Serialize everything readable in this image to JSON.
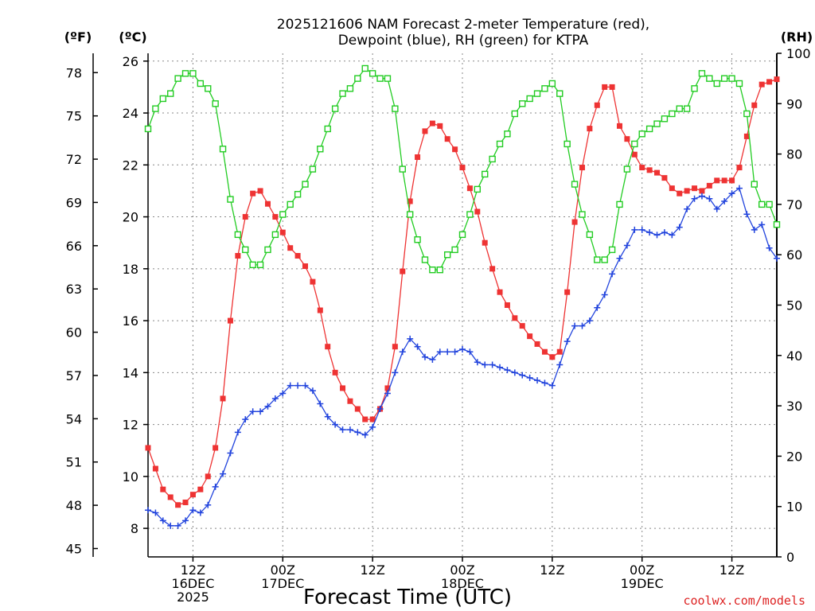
{
  "colors": {
    "temperature": "#ee3333",
    "dewpoint": "#2244dd",
    "rh": "#22cc22",
    "grid": "#888888",
    "axis": "#000000",
    "credit": "#dd2222"
  },
  "chart_data": {
    "type": "line",
    "title_lines": [
      "2025121606 NAM Forecast 2-meter Temperature (red),",
      "Dewpoint (blue), RH (green) for KTPA"
    ],
    "xlabel": "Forecast Time (UTC)",
    "credit": "coolwx.com/models",
    "units": {
      "fahrenheit": "(ºF)",
      "celsius": "(ºC)",
      "rh": "(RH)"
    },
    "x_unit": "forecast hour from 2025-12-16 06Z",
    "xlim": [
      0,
      84
    ],
    "x_ticks": [
      {
        "x": 6,
        "lines": [
          "12Z",
          "16DEC",
          "2025"
        ]
      },
      {
        "x": 18,
        "lines": [
          "00Z",
          "17DEC"
        ]
      },
      {
        "x": 30,
        "lines": [
          "12Z"
        ]
      },
      {
        "x": 42,
        "lines": [
          "00Z",
          "18DEC"
        ]
      },
      {
        "x": 54,
        "lines": [
          "12Z"
        ]
      },
      {
        "x": 66,
        "lines": [
          "00Z",
          "19DEC"
        ]
      },
      {
        "x": 78,
        "lines": [
          "12Z"
        ]
      }
    ],
    "celsius_axis": {
      "ylim": [
        6.9,
        26.3
      ],
      "ticks": [
        8,
        10,
        12,
        14,
        16,
        18,
        20,
        22,
        24,
        26
      ]
    },
    "fahrenheit_axis": {
      "ticks": [
        45,
        48,
        51,
        54,
        57,
        60,
        63,
        66,
        69,
        72,
        75,
        78
      ]
    },
    "rh_axis": {
      "ylim": [
        0,
        100
      ],
      "ticks": [
        0,
        10,
        20,
        30,
        40,
        50,
        60,
        70,
        80,
        90,
        100
      ]
    },
    "series": [
      {
        "name": "Temperature",
        "axis": "celsius",
        "marker": "filled-square",
        "color": "#ee3333",
        "x": [
          0,
          1,
          2,
          3,
          4,
          5,
          6,
          7,
          8,
          9,
          10,
          11,
          12,
          13,
          14,
          15,
          16,
          17,
          18,
          19,
          20,
          21,
          22,
          23,
          24,
          25,
          26,
          27,
          28,
          29,
          30,
          31,
          32,
          33,
          34,
          35,
          36,
          37,
          38,
          39,
          40,
          41,
          42,
          43,
          44,
          45,
          46,
          47,
          48,
          49,
          50,
          51,
          52,
          53,
          54,
          55,
          56,
          57,
          58,
          59,
          60,
          61,
          62,
          63,
          64,
          65,
          66,
          67,
          68,
          69,
          70,
          71,
          72,
          73,
          74,
          75,
          76,
          77,
          78,
          79,
          80,
          81,
          82,
          83,
          84
        ],
        "values": [
          11.1,
          10.3,
          9.5,
          9.2,
          8.9,
          9.0,
          9.3,
          9.5,
          10.0,
          11.1,
          13.0,
          16.0,
          18.5,
          20.0,
          20.9,
          21.0,
          20.5,
          20.0,
          19.4,
          18.8,
          18.5,
          18.1,
          17.5,
          16.4,
          15.0,
          14.0,
          13.4,
          12.9,
          12.6,
          12.2,
          12.2,
          12.6,
          13.4,
          15.0,
          17.9,
          20.6,
          22.3,
          23.3,
          23.6,
          23.5,
          23.0,
          22.6,
          21.9,
          21.1,
          20.2,
          19.0,
          18.0,
          17.1,
          16.6,
          16.1,
          15.8,
          15.4,
          15.1,
          14.8,
          14.6,
          14.8,
          17.1,
          19.8,
          21.9,
          23.4,
          24.3,
          25.0,
          25.0,
          23.5,
          23.0,
          22.4,
          21.9,
          21.8,
          21.7,
          21.5,
          21.1,
          20.9,
          21.0,
          21.1,
          21.0,
          21.2,
          21.4,
          21.4,
          21.4,
          21.9,
          23.1,
          24.3,
          25.1,
          25.2,
          25.3
        ]
      },
      {
        "name": "Dewpoint",
        "axis": "celsius",
        "marker": "plus",
        "color": "#2244dd",
        "x": [
          0,
          1,
          2,
          3,
          4,
          5,
          6,
          7,
          8,
          9,
          10,
          11,
          12,
          13,
          14,
          15,
          16,
          17,
          18,
          19,
          20,
          21,
          22,
          23,
          24,
          25,
          26,
          27,
          28,
          29,
          30,
          31,
          32,
          33,
          34,
          35,
          36,
          37,
          38,
          39,
          40,
          41,
          42,
          43,
          44,
          45,
          46,
          47,
          48,
          49,
          50,
          51,
          52,
          53,
          54,
          55,
          56,
          57,
          58,
          59,
          60,
          61,
          62,
          63,
          64,
          65,
          66,
          67,
          68,
          69,
          70,
          71,
          72,
          73,
          74,
          75,
          76,
          77,
          78,
          79,
          80,
          81,
          82,
          83,
          84
        ],
        "values": [
          8.7,
          8.6,
          8.3,
          8.1,
          8.1,
          8.3,
          8.7,
          8.6,
          8.9,
          9.6,
          10.1,
          10.9,
          11.7,
          12.2,
          12.5,
          12.5,
          12.7,
          13.0,
          13.2,
          13.5,
          13.5,
          13.5,
          13.3,
          12.8,
          12.3,
          12.0,
          11.8,
          11.8,
          11.7,
          11.6,
          11.9,
          12.6,
          13.2,
          14.0,
          14.8,
          15.3,
          15.0,
          14.6,
          14.5,
          14.8,
          14.8,
          14.8,
          14.9,
          14.8,
          14.4,
          14.3,
          14.3,
          14.2,
          14.1,
          14.0,
          13.9,
          13.8,
          13.7,
          13.6,
          13.5,
          14.3,
          15.2,
          15.8,
          15.8,
          16.0,
          16.5,
          17.0,
          17.8,
          18.4,
          18.9,
          19.5,
          19.5,
          19.4,
          19.3,
          19.4,
          19.3,
          19.6,
          20.3,
          20.7,
          20.8,
          20.7,
          20.3,
          20.6,
          20.9,
          21.1,
          20.1,
          19.5,
          19.7,
          18.8,
          18.4
        ]
      },
      {
        "name": "RH",
        "axis": "rh",
        "marker": "open-square",
        "color": "#22cc22",
        "x": [
          0,
          1,
          2,
          3,
          4,
          5,
          6,
          7,
          8,
          9,
          10,
          11,
          12,
          13,
          14,
          15,
          16,
          17,
          18,
          19,
          20,
          21,
          22,
          23,
          24,
          25,
          26,
          27,
          28,
          29,
          30,
          31,
          32,
          33,
          34,
          35,
          36,
          37,
          38,
          39,
          40,
          41,
          42,
          43,
          44,
          45,
          46,
          47,
          48,
          49,
          50,
          51,
          52,
          53,
          54,
          55,
          56,
          57,
          58,
          59,
          60,
          61,
          62,
          63,
          64,
          65,
          66,
          67,
          68,
          69,
          70,
          71,
          72,
          73,
          74,
          75,
          76,
          77,
          78,
          79,
          80,
          81,
          82,
          83,
          84
        ],
        "values": [
          85,
          89,
          91,
          92,
          95,
          96,
          96,
          94,
          93,
          90,
          81,
          71,
          64,
          61,
          58,
          58,
          61,
          64,
          68,
          70,
          72,
          74,
          77,
          81,
          85,
          89,
          92,
          93,
          95,
          97,
          96,
          95,
          95,
          89,
          77,
          68,
          63,
          59,
          57,
          57,
          60,
          61,
          64,
          68,
          73,
          76,
          79,
          82,
          84,
          88,
          90,
          91,
          92,
          93,
          94,
          92,
          82,
          74,
          68,
          64,
          59,
          59,
          61,
          70,
          77,
          82,
          84,
          85,
          86,
          87,
          88,
          89,
          89,
          93,
          96,
          95,
          94,
          95,
          95,
          94,
          88,
          74,
          70,
          70,
          66
        ]
      }
    ]
  }
}
